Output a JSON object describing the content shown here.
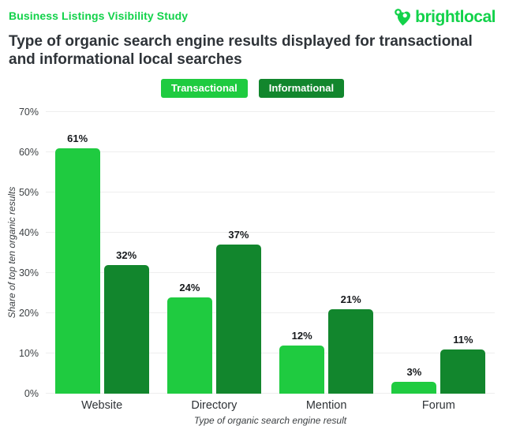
{
  "header": {
    "eyebrow": "Business Listings Visibility Study",
    "logo_text": "brightlocal",
    "title_lines": [
      "Type of organic search engine results displayed for transactional",
      "and informational local searches"
    ]
  },
  "colors": {
    "brand_green": "#12d24a",
    "transactional_green": "#1fcb40",
    "informational_green": "#12862d",
    "title_dark": "#2e3338",
    "grid_gray": "#eeeeee",
    "axis_text": "#3c4043"
  },
  "chart_data": {
    "type": "bar",
    "title": "Type of organic search engine results displayed for transactional and informational local searches",
    "categories": [
      "Website",
      "Directory",
      "Mention",
      "Forum"
    ],
    "series": [
      {
        "name": "Transactional",
        "color": "#1fcb40",
        "values": [
          61,
          24,
          12,
          3
        ]
      },
      {
        "name": "Informational",
        "color": "#12862d",
        "values": [
          32,
          37,
          21,
          11
        ]
      }
    ],
    "value_labels": [
      [
        "61%",
        "24%",
        "12%",
        "3%"
      ],
      [
        "32%",
        "37%",
        "21%",
        "11%"
      ]
    ],
    "xlabel": "Type of organic search engine result",
    "ylabel": "Share of top ten organic results",
    "ylim": [
      0,
      70
    ],
    "yticks": [
      "0%",
      "10%",
      "20%",
      "30%",
      "40%",
      "50%",
      "60%",
      "70%"
    ],
    "grid": true,
    "legend_position": "top"
  }
}
